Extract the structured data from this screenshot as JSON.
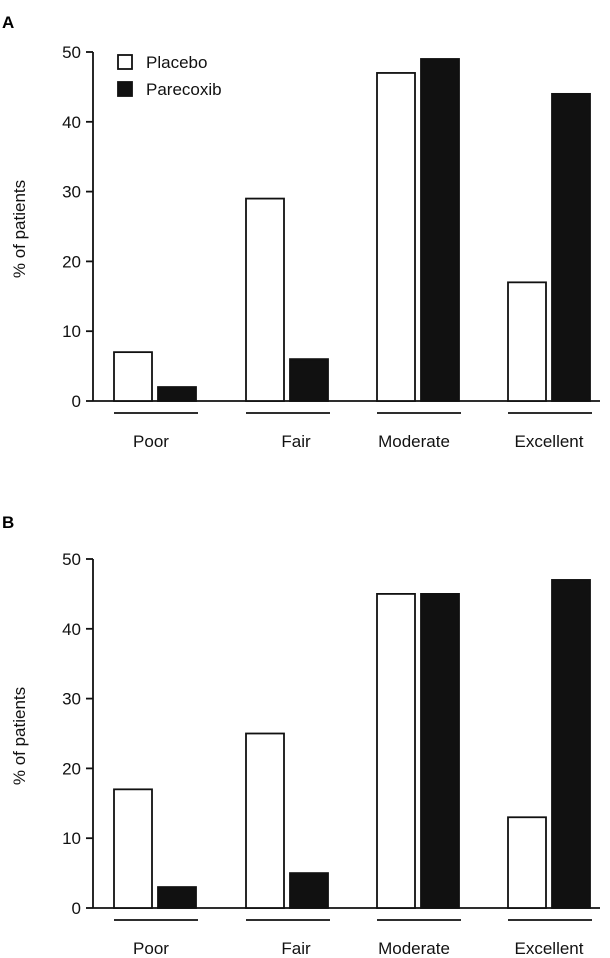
{
  "chart_data": [
    {
      "panel": "A",
      "type": "bar",
      "ylabel": "% of patients",
      "ylim": [
        0,
        50
      ],
      "yticks": [
        0,
        10,
        20,
        30,
        40,
        50
      ],
      "categories": [
        "Poor",
        "Fair",
        "Moderate",
        "Excellent"
      ],
      "series": [
        {
          "name": "Placebo",
          "color": "#ffffff",
          "values": [
            7,
            29,
            47,
            17
          ]
        },
        {
          "name": "Parecoxib",
          "color": "#111111",
          "values": [
            2,
            6,
            49,
            44
          ]
        }
      ],
      "legend": "top-left"
    },
    {
      "panel": "B",
      "type": "bar",
      "ylabel": "% of patients",
      "ylim": [
        0,
        50
      ],
      "yticks": [
        0,
        10,
        20,
        30,
        40,
        50
      ],
      "categories": [
        "Poor",
        "Fair",
        "Moderate",
        "Excellent"
      ],
      "series": [
        {
          "name": "Placebo",
          "color": "#ffffff",
          "values": [
            17,
            25,
            45,
            13
          ]
        },
        {
          "name": "Parecoxib",
          "color": "#111111",
          "values": [
            3,
            5,
            45,
            47
          ]
        }
      ]
    }
  ]
}
